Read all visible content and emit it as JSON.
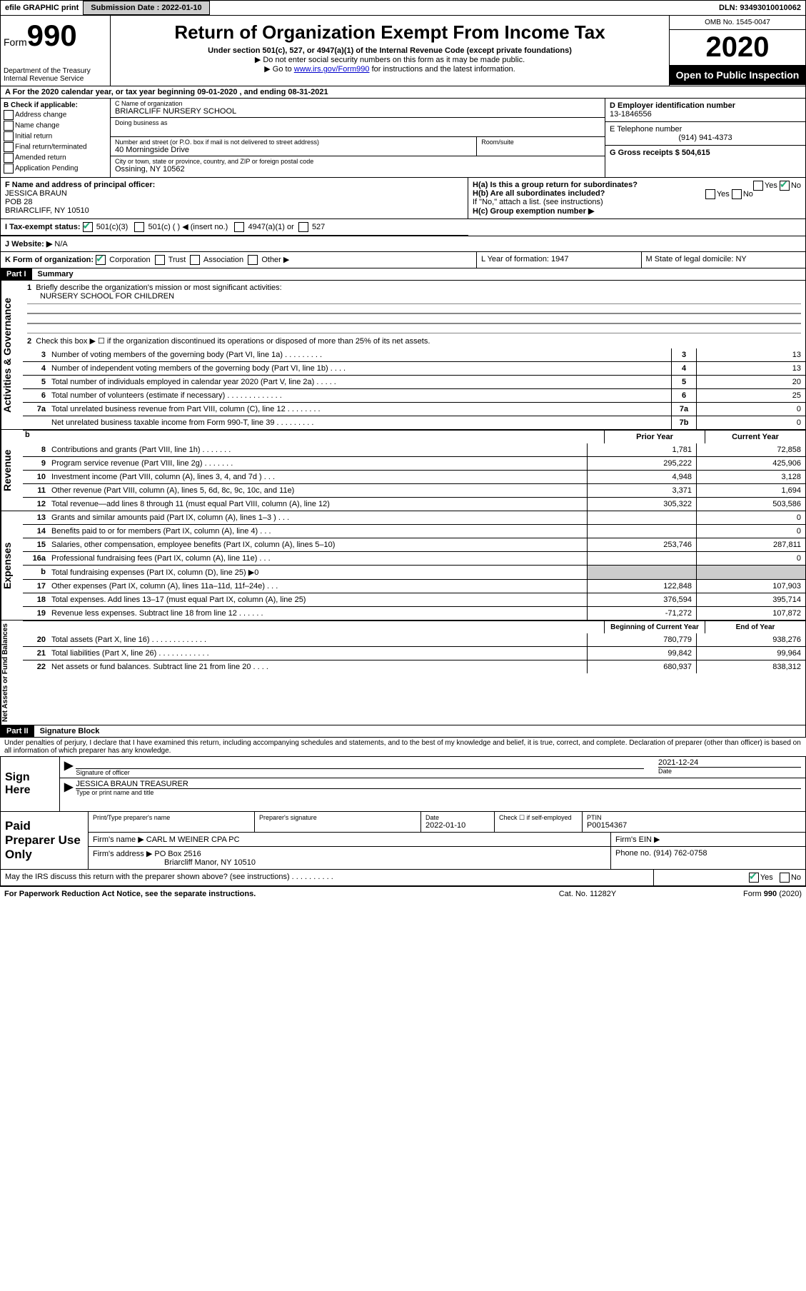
{
  "topbar": {
    "efile": "efile GRAPHIC print",
    "submission_label": "Submission Date : 2022-01-10",
    "dln": "DLN: 93493010010062"
  },
  "header": {
    "form_label": "Form",
    "form_num": "990",
    "dept": "Department of the Treasury",
    "irs": "Internal Revenue Service",
    "title": "Return of Organization Exempt From Income Tax",
    "sub1": "Under section 501(c), 527, or 4947(a)(1) of the Internal Revenue Code (except private foundations)",
    "sub2": "▶ Do not enter social security numbers on this form as it may be made public.",
    "sub3_pre": "▶ Go to ",
    "sub3_link": "www.irs.gov/Form990",
    "sub3_post": " for instructions and the latest information.",
    "omb": "OMB No. 1545-0047",
    "year": "2020",
    "open": "Open to Public Inspection"
  },
  "a_line": "A For the 2020 calendar year, or tax year beginning 09-01-2020    , and ending 08-31-2021",
  "b": {
    "label": "B Check if applicable:",
    "opts": [
      "Address change",
      "Name change",
      "Initial return",
      "Final return/terminated",
      "Amended return",
      "Application Pending"
    ]
  },
  "c": {
    "name_label": "C Name of organization",
    "name": "BRIARCLIFF NURSERY SCHOOL",
    "dba_label": "Doing business as",
    "addr_label": "Number and street (or P.O. box if mail is not delivered to street address)",
    "room_label": "Room/suite",
    "addr": "40 Morningside Drive",
    "city_label": "City or town, state or province, country, and ZIP or foreign postal code",
    "city": "Ossining, NY  10562"
  },
  "d": {
    "ein_label": "D Employer identification number",
    "ein": "13-1846556",
    "tel_label": "E Telephone number",
    "tel": "(914) 941-4373",
    "gross_label": "G Gross receipts $ 504,615"
  },
  "f": {
    "label": "F Name and address of principal officer:",
    "name": "JESSICA BRAUN",
    "addr1": "POB 28",
    "addr2": "BRIARCLIFF, NY  10510"
  },
  "h": {
    "a_label": "H(a)  Is this a group return for subordinates?",
    "a_yes": "Yes",
    "a_no": "No",
    "b_label": "H(b)  Are all subordinates included?",
    "b_note": "If \"No,\" attach a list. (see instructions)",
    "c_label": "H(c)  Group exemption number ▶"
  },
  "i": {
    "label": "I  Tax-exempt status:",
    "o1": "501(c)(3)",
    "o2": "501(c) (   ) ◀ (insert no.)",
    "o3": "4947(a)(1) or",
    "o4": "527"
  },
  "j": {
    "label": "J  Website: ▶",
    "val": "N/A"
  },
  "k": {
    "label": "K Form of organization:",
    "o1": "Corporation",
    "o2": "Trust",
    "o3": "Association",
    "o4": "Other ▶"
  },
  "l": {
    "label": "L Year of formation: 1947"
  },
  "m": {
    "label": "M State of legal domicile: NY"
  },
  "part1": {
    "header": "Part I",
    "title": "Summary"
  },
  "gov": {
    "vlabel": "Activities & Governance",
    "l1_label": "Briefly describe the organization's mission or most significant activities:",
    "l1_val": "NURSERY SCHOOL FOR CHILDREN",
    "l2_label": "Check this box ▶ ☐  if the organization discontinued its operations or disposed of more than 25% of its net assets.",
    "rows": [
      {
        "num": "3",
        "label": "Number of voting members of the governing body (Part VI, line 1a)   .   .   .   .   .   .   .   .   .",
        "box": "3",
        "val": "13"
      },
      {
        "num": "4",
        "label": "Number of independent voting members of the governing body (Part VI, line 1b)   .   .   .   .",
        "box": "4",
        "val": "13"
      },
      {
        "num": "5",
        "label": "Total number of individuals employed in calendar year 2020 (Part V, line 2a)   .   .   .   .   .",
        "box": "5",
        "val": "20"
      },
      {
        "num": "6",
        "label": "Total number of volunteers (estimate if necessary)   .   .   .   .   .   .   .   .   .   .   .   .   .",
        "box": "6",
        "val": "25"
      },
      {
        "num": "7a",
        "label": "Total unrelated business revenue from Part VIII, column (C), line 12   .   .   .   .   .   .   .   .",
        "box": "7a",
        "val": "0"
      },
      {
        "num": "",
        "label": "Net unrelated business taxable income from Form 990-T, line 39   .   .   .   .   .   .   .   .   .",
        "box": "7b",
        "val": "0"
      }
    ]
  },
  "rev": {
    "vlabel": "Revenue",
    "head_prior": "Prior Year",
    "head_current": "Current Year",
    "rows": [
      {
        "num": "8",
        "label": "Contributions and grants (Part VIII, line 1h)   .   .   .   .   .   .   .",
        "p": "1,781",
        "c": "72,858"
      },
      {
        "num": "9",
        "label": "Program service revenue (Part VIII, line 2g)   .   .   .   .   .   .   .",
        "p": "295,222",
        "c": "425,906"
      },
      {
        "num": "10",
        "label": "Investment income (Part VIII, column (A), lines 3, 4, and 7d )   .   .   .",
        "p": "4,948",
        "c": "3,128"
      },
      {
        "num": "11",
        "label": "Other revenue (Part VIII, column (A), lines 5, 6d, 8c, 9c, 10c, and 11e)",
        "p": "3,371",
        "c": "1,694"
      },
      {
        "num": "12",
        "label": "Total revenue—add lines 8 through 11 (must equal Part VIII, column (A), line 12)",
        "p": "305,322",
        "c": "503,586"
      }
    ]
  },
  "exp": {
    "vlabel": "Expenses",
    "rows": [
      {
        "num": "13",
        "label": "Grants and similar amounts paid (Part IX, column (A), lines 1–3 )   .   .   .",
        "p": "",
        "c": "0"
      },
      {
        "num": "14",
        "label": "Benefits paid to or for members (Part IX, column (A), line 4)   .   .   .",
        "p": "",
        "c": "0"
      },
      {
        "num": "15",
        "label": "Salaries, other compensation, employee benefits (Part IX, column (A), lines 5–10)",
        "p": "253,746",
        "c": "287,811"
      },
      {
        "num": "16a",
        "label": "Professional fundraising fees (Part IX, column (A), line 11e)   .   .   .",
        "p": "",
        "c": "0"
      },
      {
        "num": "b",
        "label": "Total fundraising expenses (Part IX, column (D), line 25) ▶0",
        "p": "GREY",
        "c": "GREY"
      },
      {
        "num": "17",
        "label": "Other expenses (Part IX, column (A), lines 11a–11d, 11f–24e)   .   .   .",
        "p": "122,848",
        "c": "107,903"
      },
      {
        "num": "18",
        "label": "Total expenses. Add lines 13–17 (must equal Part IX, column (A), line 25)",
        "p": "376,594",
        "c": "395,714"
      },
      {
        "num": "19",
        "label": "Revenue less expenses. Subtract line 18 from line 12   .   .   .   .   .   .",
        "p": "-71,272",
        "c": "107,872"
      }
    ]
  },
  "net": {
    "vlabel": "Net Assets or Fund Balances",
    "head_begin": "Beginning of Current Year",
    "head_end": "End of Year",
    "rows": [
      {
        "num": "20",
        "label": "Total assets (Part X, line 16)   .   .   .   .   .   .   .   .   .   .   .   .   .",
        "p": "780,779",
        "c": "938,276"
      },
      {
        "num": "21",
        "label": "Total liabilities (Part X, line 26)   .   .   .   .   .   .   .   .   .   .   .   .",
        "p": "99,842",
        "c": "99,964"
      },
      {
        "num": "22",
        "label": "Net assets or fund balances. Subtract line 21 from line 20   .   .   .   .",
        "p": "680,937",
        "c": "838,312"
      }
    ]
  },
  "part2": {
    "header": "Part II",
    "title": "Signature Block"
  },
  "decl": "Under penalties of perjury, I declare that I have examined this return, including accompanying schedules and statements, and to the best of my knowledge and belief, it is true, correct, and complete. Declaration of preparer (other than officer) is based on all information of which preparer has any knowledge.",
  "sign": {
    "left": "Sign Here",
    "sig_label": "Signature of officer",
    "date": "2021-12-24",
    "date_label": "Date",
    "name": "JESSICA BRAUN  TREASURER",
    "name_label": "Type or print name and title"
  },
  "prep": {
    "left": "Paid Preparer Use Only",
    "r1": {
      "c1_label": "Print/Type preparer's name",
      "c2_label": "Preparer's signature",
      "c3_label": "Date",
      "c3_val": "2022-01-10",
      "c4_label": "Check ☐ if self-employed",
      "c5_label": "PTIN",
      "c5_val": "P00154367"
    },
    "r2": {
      "label": "Firm's name     ▶",
      "val": "CARL M WEINER CPA PC",
      "ein_label": "Firm's EIN ▶"
    },
    "r3": {
      "label": "Firm's address ▶",
      "val1": "PO Box 2516",
      "val2": "Briarcliff Manor, NY  10510",
      "ph_label": "Phone no. (914) 762-0758"
    }
  },
  "discuss": {
    "q": "May the IRS discuss this return with the preparer shown above? (see instructions)   .   .   .   .   .   .   .   .   .   .",
    "yes": "Yes",
    "no": "No"
  },
  "footer": {
    "left": "For Paperwork Reduction Act Notice, see the separate instructions.",
    "center": "Cat. No. 11282Y",
    "right": "Form 990 (2020)"
  }
}
